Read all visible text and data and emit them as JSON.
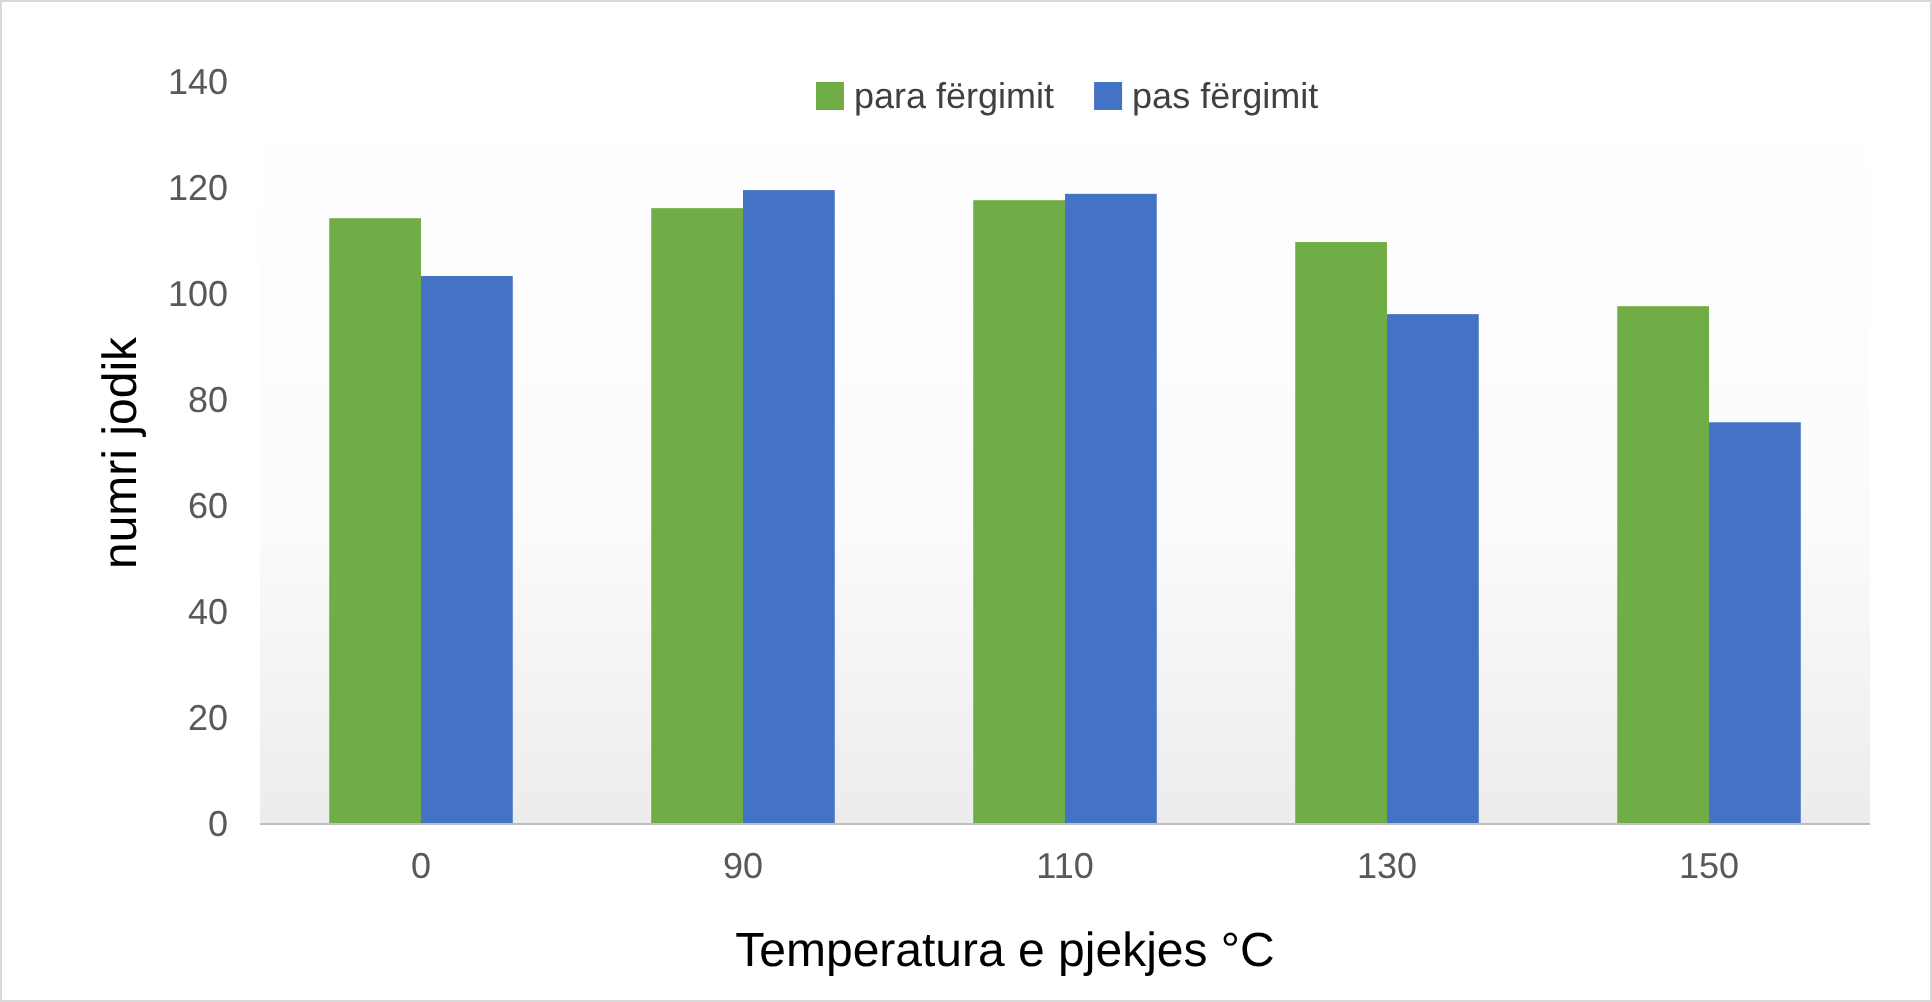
{
  "chart_data": {
    "type": "bar",
    "xlabel": "Temperatura e pjekjes °C",
    "ylabel": "numri jodik",
    "categories": [
      "0",
      "90",
      "110",
      "130",
      "150"
    ],
    "series": [
      {
        "name": "para fërgimit",
        "color": "#70ad47",
        "values": [
          114.3,
          116.2,
          117.7,
          109.8,
          97.7
        ]
      },
      {
        "name": "pas fërgimit",
        "color": "#4472c4",
        "values": [
          103.4,
          119.6,
          118.9,
          96.2,
          75.8
        ]
      }
    ],
    "ylim": [
      0,
      140
    ],
    "yticks": [
      0,
      20,
      40,
      60,
      80,
      100,
      120,
      140
    ],
    "grid": false,
    "legend": "top"
  }
}
